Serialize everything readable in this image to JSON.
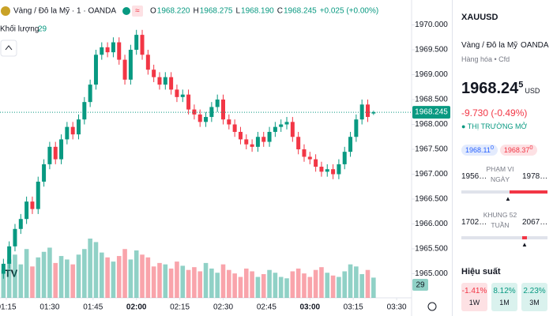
{
  "chart_data": {
    "type": "candlestick",
    "symbol_title": "Vàng / Đô la Mỹ · 1 · OANDA",
    "ohlc": [
      {
        "name": "O",
        "value": 1968.22,
        "label": "1968.220"
      },
      {
        "name": "H",
        "value": 1968.275,
        "label": "1968.275"
      },
      {
        "name": "L",
        "value": 1968.19,
        "label": "1968.190"
      },
      {
        "name": "C",
        "value": 1968.245,
        "label": "1968.245"
      }
    ],
    "change": "+0.025 (+0.00%)",
    "volume_title": "Khối lượng",
    "up_color": "#089981",
    "down_color": "#f23645",
    "ylim": [
      1964.5,
      1970.5
    ],
    "yticks": [
      {
        "value": 1970,
        "label": "1970.000"
      },
      {
        "value": 1969.5,
        "label": "1969.500"
      },
      {
        "value": 1969,
        "label": "1969.000"
      },
      {
        "value": 1968.5,
        "label": "1968.500"
      },
      {
        "value": 1968,
        "label": "1968.000"
      },
      {
        "value": 1967.5,
        "label": "1967.500"
      },
      {
        "value": 1967,
        "label": "1967.000"
      },
      {
        "value": 1966.5,
        "label": "1966.500"
      },
      {
        "value": 1966,
        "label": "1966.000"
      },
      {
        "value": 1965.5,
        "label": "1965.500"
      },
      {
        "value": 1965,
        "label": "1965.000"
      }
    ],
    "xticks": [
      "01:15",
      "01:30",
      "01:45",
      "02:00",
      "02:15",
      "02:30",
      "02:45",
      "03:00",
      "03:15",
      "03:30"
    ],
    "candles": {
      "x": [
        "01:14",
        "01:16",
        "01:18",
        "01:20",
        "01:22",
        "01:24",
        "01:26",
        "01:28",
        "01:30",
        "01:32",
        "01:34",
        "01:36",
        "01:38",
        "01:40",
        "01:42",
        "01:44",
        "01:46",
        "01:48",
        "01:50",
        "01:52",
        "01:54",
        "01:56",
        "01:58",
        "02:00",
        "02:02",
        "02:04",
        "02:06",
        "02:08",
        "02:10",
        "02:12",
        "02:14",
        "02:16",
        "02:18",
        "02:20",
        "02:22",
        "02:24",
        "02:26",
        "02:28",
        "02:30",
        "02:32",
        "02:34",
        "02:36",
        "02:38",
        "02:40",
        "02:42",
        "02:44",
        "02:46",
        "02:48",
        "02:50",
        "02:52",
        "02:54",
        "02:56",
        "02:58",
        "03:00",
        "03:02",
        "03:04",
        "03:06",
        "03:08",
        "03:10",
        "03:12",
        "03:14",
        "03:16",
        "03:18",
        "03:20",
        "03:22"
      ],
      "open": [
        1965.0,
        1965.2,
        1965.55,
        1965.9,
        1966.1,
        1966.45,
        1966.3,
        1966.85,
        1967.2,
        1967.55,
        1967.3,
        1967.7,
        1967.95,
        1967.8,
        1968.1,
        1968.45,
        1968.8,
        1969.4,
        1969.55,
        1969.45,
        1969.65,
        1969.3,
        1968.9,
        1969.5,
        1969.8,
        1969.4,
        1969.1,
        1968.95,
        1968.8,
        1968.95,
        1968.7,
        1968.55,
        1968.6,
        1968.3,
        1968.2,
        1968.05,
        1968.15,
        1968.35,
        1968.5,
        1968.1,
        1968.0,
        1967.85,
        1967.7,
        1967.6,
        1967.55,
        1967.75,
        1967.65,
        1967.85,
        1967.95,
        1968.0,
        1968.05,
        1967.75,
        1967.5,
        1967.35,
        1967.3,
        1967.15,
        1967.05,
        1967.1,
        1967.0,
        1967.2,
        1967.45,
        1967.75,
        1968.1,
        1968.4,
        1968.22
      ],
      "high": [
        1965.3,
        1965.65,
        1966.0,
        1966.2,
        1966.55,
        1966.55,
        1966.95,
        1967.3,
        1967.65,
        1967.65,
        1967.8,
        1968.05,
        1968.05,
        1968.2,
        1968.55,
        1968.9,
        1969.5,
        1969.65,
        1969.65,
        1969.75,
        1969.75,
        1969.4,
        1969.6,
        1969.9,
        1969.9,
        1969.5,
        1969.2,
        1969.05,
        1969.05,
        1969.05,
        1968.8,
        1968.7,
        1968.7,
        1968.4,
        1968.3,
        1968.25,
        1968.45,
        1968.6,
        1968.6,
        1968.2,
        1968.1,
        1967.95,
        1967.8,
        1967.7,
        1967.85,
        1967.85,
        1967.95,
        1968.05,
        1968.1,
        1968.15,
        1968.15,
        1967.85,
        1967.6,
        1967.45,
        1967.4,
        1967.25,
        1967.2,
        1967.2,
        1967.3,
        1967.55,
        1967.85,
        1968.2,
        1968.5,
        1968.5,
        1968.275
      ],
      "low": [
        1964.9,
        1965.1,
        1965.45,
        1965.8,
        1966.0,
        1966.2,
        1966.2,
        1966.75,
        1967.1,
        1967.2,
        1967.2,
        1967.6,
        1967.7,
        1967.7,
        1968.0,
        1968.35,
        1968.7,
        1969.3,
        1969.35,
        1969.35,
        1969.2,
        1968.8,
        1968.8,
        1969.4,
        1969.3,
        1969.0,
        1968.85,
        1968.7,
        1968.7,
        1968.6,
        1968.45,
        1968.45,
        1968.2,
        1968.1,
        1967.95,
        1967.95,
        1968.05,
        1968.25,
        1968.0,
        1967.9,
        1967.75,
        1967.6,
        1967.5,
        1967.45,
        1967.45,
        1967.55,
        1967.55,
        1967.75,
        1967.85,
        1967.9,
        1967.65,
        1967.4,
        1967.25,
        1967.2,
        1967.05,
        1966.95,
        1966.95,
        1966.9,
        1966.9,
        1967.1,
        1967.35,
        1967.65,
        1968.0,
        1968.05,
        1968.19
      ],
      "close": [
        1965.2,
        1965.55,
        1965.9,
        1966.1,
        1966.45,
        1966.3,
        1966.85,
        1967.2,
        1967.55,
        1967.3,
        1967.7,
        1967.95,
        1967.8,
        1968.1,
        1968.45,
        1968.8,
        1969.4,
        1969.55,
        1969.45,
        1969.65,
        1969.3,
        1968.9,
        1969.5,
        1969.8,
        1969.4,
        1969.1,
        1968.95,
        1968.8,
        1968.95,
        1968.7,
        1968.55,
        1968.6,
        1968.3,
        1968.2,
        1968.05,
        1968.15,
        1968.35,
        1968.5,
        1968.1,
        1968.0,
        1967.85,
        1967.7,
        1967.6,
        1967.55,
        1967.75,
        1967.65,
        1967.85,
        1967.95,
        1968.0,
        1968.05,
        1967.75,
        1967.5,
        1967.35,
        1967.3,
        1967.15,
        1967.05,
        1967.1,
        1967.0,
        1967.2,
        1967.45,
        1967.75,
        1968.1,
        1968.4,
        1968.15,
        1968.245
      ],
      "volume": [
        40,
        55,
        62,
        48,
        70,
        45,
        58,
        66,
        72,
        50,
        60,
        55,
        48,
        62,
        70,
        85,
        80,
        65,
        58,
        52,
        60,
        70,
        55,
        68,
        62,
        58,
        45,
        50,
        48,
        42,
        52,
        46,
        40,
        44,
        38,
        50,
        42,
        36,
        48,
        40,
        35,
        30,
        42,
        38,
        30,
        34,
        40,
        36,
        30,
        28,
        38,
        42,
        35,
        30,
        40,
        44,
        36,
        32,
        30,
        38,
        48,
        45,
        34,
        40,
        29
      ]
    }
  },
  "panel": {
    "symbol": "XAUUSD",
    "name": "Vàng / Đô la Mỹ",
    "exchange": "OANDA",
    "category": "Hàng hóa • Cfd",
    "price_main": "1968.24",
    "price_sup": "5",
    "currency": "USD",
    "change": "-9.730 (-0.49%)",
    "status": "THỊ TRƯỜNG MỞ",
    "bid": "1968.11",
    "bid_sup": "0",
    "ask": "1968.37",
    "ask_sup": "0",
    "day_low": "1956…",
    "day_label": "PHẠM VI NGÀY",
    "day_high": "1978…",
    "year_low": "1702…",
    "year_label": "KHUNG 52 TUẦN",
    "year_high": "2067…",
    "perf_title": "Hiệu suất",
    "perf": [
      {
        "value": "-1.41%",
        "period": "1W"
      },
      {
        "value": "8.12%",
        "period": "1M"
      },
      {
        "value": "2.23%",
        "period": "3M"
      }
    ]
  }
}
